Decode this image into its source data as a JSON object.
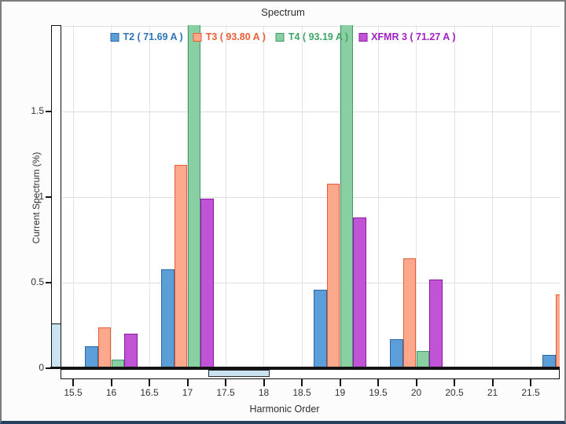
{
  "chart_data": {
    "type": "bar",
    "title": "Spectrum",
    "xlabel": "Harmonic Order",
    "ylabel": "Current Spectrum (%)",
    "x_ticks": [
      {
        "label": "15.5",
        "value": 15.5
      },
      {
        "label": "16",
        "value": 16
      },
      {
        "label": "16.5",
        "value": 16.5
      },
      {
        "label": "17",
        "value": 17
      },
      {
        "label": "17.5",
        "value": 17.5
      },
      {
        "label": "18",
        "value": 18
      },
      {
        "label": "18.5",
        "value": 18.5
      },
      {
        "label": "19",
        "value": 19
      },
      {
        "label": "19.5",
        "value": 19.5
      },
      {
        "label": "20",
        "value": 20
      },
      {
        "label": "20.5",
        "value": 20.5
      },
      {
        "label": "21",
        "value": 21
      },
      {
        "label": "21.5",
        "value": 21.5
      }
    ],
    "x_range": [
      15.36,
      21.88
    ],
    "y_ticks": [
      {
        "label": "0",
        "value": 0
      },
      {
        "label": "0.5",
        "value": 0.5
      },
      {
        "label": "1",
        "value": 1
      },
      {
        "label": "1.5",
        "value": 1.5
      }
    ],
    "y_range": [
      0,
      2.0
    ],
    "grid": true,
    "legend_position": "top-inside",
    "bar_width_units": 0.175,
    "group_offsets_units": [
      -0.2625,
      -0.0875,
      0.0875,
      0.2625
    ],
    "series": [
      {
        "name": "T2 ( 71.69 A )",
        "fill": "#5c9fd8",
        "border": "#2a66a5",
        "text_color": "#2e73b9"
      },
      {
        "name": "T3 ( 93.80 A )",
        "fill": "#fba88c",
        "border": "#e55c35",
        "text_color": "#ee5d38"
      },
      {
        "name": "T4 ( 93.19 A )",
        "fill": "#8acfa4",
        "border": "#3e9d66",
        "text_color": "#3ea566"
      },
      {
        "name": "XFMR 3 ( 71.27 A )",
        "fill": "#c153d6",
        "border": "#8c17a0",
        "text_color": "#a21fc6"
      }
    ],
    "groups": [
      {
        "x": 16,
        "values": [
          0.13,
          0.24,
          0.05,
          0.2
        ]
      },
      {
        "x": 17,
        "values": [
          0.58,
          1.19,
          2.1,
          0.99
        ]
      },
      {
        "x": 19,
        "values": [
          0.46,
          1.08,
          2.1,
          0.88
        ]
      },
      {
        "x": 20,
        "values": [
          0.17,
          0.64,
          0.1,
          0.52
        ]
      },
      {
        "x": 22,
        "values": [
          0.08,
          0.43,
          null,
          null
        ]
      }
    ]
  },
  "scrollbars": {
    "vertical": {
      "thumb_from_value": 0,
      "thumb_to_value": 0.26
    },
    "horizontal": {
      "thumb_from_value": 17.28,
      "thumb_to_value": 18.08
    }
  }
}
